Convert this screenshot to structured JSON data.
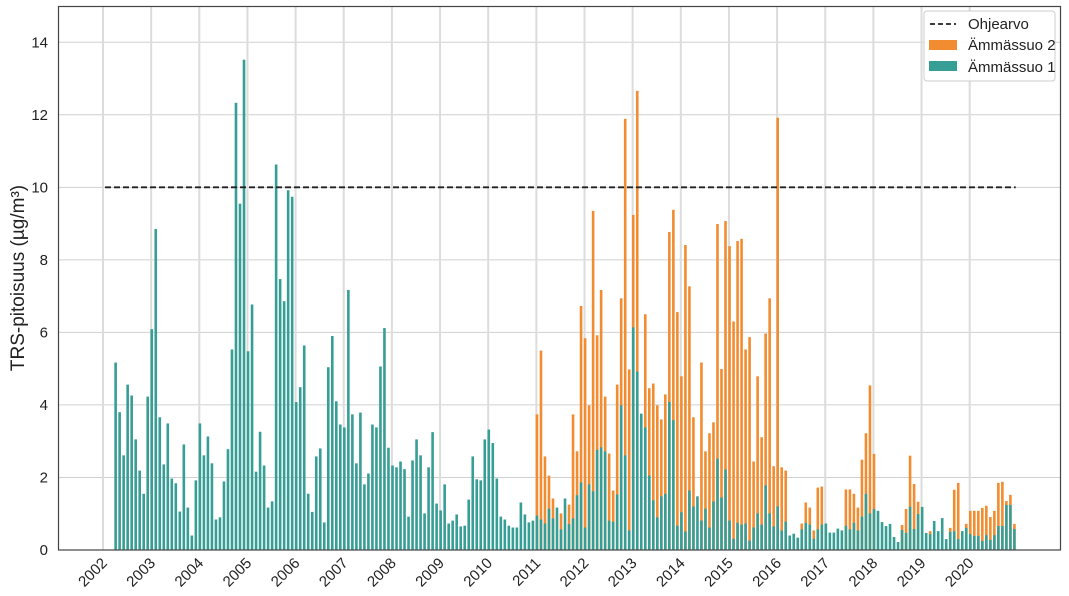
{
  "chart_data": {
    "type": "bar",
    "title": "",
    "xlabel": "",
    "ylabel": "TRS-pitoisuus (µg/m³)",
    "ylim": [
      0,
      15
    ],
    "yticks": [
      0,
      2,
      4,
      6,
      8,
      10,
      12,
      14
    ],
    "xticks": [
      "2002",
      "2003",
      "2004",
      "2005",
      "2006",
      "2007",
      "2008",
      "2009",
      "2010",
      "2011",
      "2012",
      "2013",
      "2014",
      "2015",
      "2016",
      "2017",
      "2018",
      "2019",
      "2020"
    ],
    "grid": true,
    "legend_position": "top-right",
    "reference_line": {
      "name": "Ohjearvo",
      "value": 10,
      "style": "dashed",
      "color": "#222222"
    },
    "series": [
      {
        "name": "Ämmässuo 2",
        "color": "#f28c30",
        "monthly": {
          "2011": [
            3.74,
            5.5,
            2.58,
            2.05,
            1.42,
            null,
            1.01,
            null,
            1.25,
            3.74,
            2.72,
            6.73
          ],
          "2012": [
            5.84,
            3.99,
            9.35,
            5.92,
            7.17,
            4.23,
            2.66,
            1.64,
            4.56,
            6.94,
            11.89,
            4.98
          ],
          "2013": [
            9.24,
            12.66,
            null,
            6.5,
            4.46,
            4.59,
            3.99,
            3.6,
            4.29,
            8.77,
            9.38,
            6.56
          ],
          "2014": [
            4.79,
            8.41,
            7.27,
            3.66,
            null,
            5.17,
            2.72,
            3.22,
            3.52,
            8.99,
            4.99,
            9.07
          ],
          "2015": [
            8.38,
            6.3,
            8.52,
            8.58,
            5.53,
            5.87,
            2.44,
            4.79,
            3.11,
            5.97,
            6.94,
            2.31
          ],
          "2016": [
            11.92,
            2.28,
            2.19,
            null,
            null,
            null,
            0.73,
            1.31,
            1.17,
            0.54,
            1.72,
            1.75
          ],
          "2017": [
            null,
            null,
            null,
            null,
            null,
            1.67,
            1.67,
            1.55,
            1.17,
            2.49,
            3.22,
            4.54
          ],
          "2018": [
            2.65,
            null,
            null,
            null,
            null,
            null,
            null,
            0.69,
            1.13,
            2.6,
            1.82,
            1.33
          ],
          "2019": [
            null,
            null,
            0.52,
            null,
            null,
            null,
            null,
            0.61,
            1.66,
            1.85,
            null,
            0.72
          ],
          "2020": [
            1.08,
            1.08,
            1.08,
            1.16,
            1.22,
            0.91,
            1.08,
            1.85,
            1.88,
            1.35,
            1.52,
            0.72
          ]
        }
      },
      {
        "name": "Ämmässuo 1",
        "color": "#379e96",
        "monthly": {
          "2002": [
            null,
            null,
            null,
            5.17,
            3.8,
            2.61,
            4.56,
            4.26,
            3.05,
            2.19,
            1.55,
            4.23
          ],
          "2003": [
            6.09,
            8.85,
            3.66,
            2.36,
            3.49,
            1.97,
            1.84,
            1.06,
            2.91,
            1.17,
            0.4,
            1.92
          ],
          "2004": [
            3.49,
            2.61,
            3.13,
            2.39,
            0.84,
            0.9,
            1.89,
            2.78,
            5.53,
            12.33,
            9.55,
            13.52
          ],
          "2005": [
            5.48,
            6.77,
            2.16,
            3.26,
            2.33,
            1.17,
            1.34,
            10.63,
            7.47,
            6.86,
            9.92,
            9.74
          ],
          "2006": [
            4.08,
            4.49,
            5.64,
            1.55,
            1.05,
            2.58,
            2.8,
            0.76,
            5.04,
            5.9,
            4.1,
            3.46
          ],
          "2007": [
            3.38,
            7.17,
            3.74,
            2.39,
            3.79,
            1.81,
            2.11,
            3.46,
            3.38,
            5.06,
            6.12,
            2.82
          ],
          "2008": [
            2.33,
            2.28,
            2.44,
            2.23,
            0.92,
            2.47,
            3.05,
            2.61,
            1.01,
            2.28,
            3.25,
            1.28
          ],
          "2009": [
            1.09,
            1.81,
            0.73,
            0.81,
            0.98,
            0.65,
            0.67,
            1.39,
            2.58,
            1.95,
            1.92,
            3.05
          ],
          "2010": [
            3.32,
            2.95,
            1.97,
            0.92,
            0.84,
            0.67,
            0.62,
            0.62,
            1.31,
            0.98,
            0.76,
            0.81
          ],
          "2011": [
            0.95,
            0.84,
            0.73,
            1.14,
            0.87,
            1.17,
            0.57,
            1.42,
            0.71,
            0.87,
            1.51,
            1.86
          ],
          "2012": [
            0.62,
            1.81,
            1.62,
            2.76,
            2.83,
            2.72,
            0.81,
            0.78,
            1.53,
            3.99,
            2.61,
            0.54
          ],
          "2013": [
            6.14,
            4.92,
            3.76,
            3.38,
            2.05,
            1.37,
            0.9,
            1.48,
            1.55,
            4.08,
            3.58,
            0.67
          ],
          "2014": [
            1.04,
            0.51,
            1.64,
            1.2,
            1.48,
            0.81,
            1.14,
            0.62,
            1.34,
            2.52,
            1.45,
            2.22
          ],
          "2015": [
            0.81,
            0.31,
            0.75,
            0.7,
            0.73,
            0.26,
            0.62,
            1.01,
            0.7,
            1.78,
            1.01,
            0.65
          ],
          "2016": [
            1.2,
            0.54,
            0.78,
            0.4,
            0.45,
            0.34,
            0.57,
            0.75,
            0.7,
            0.31,
            0.57,
            0.7
          ],
          "2017": [
            0.73,
            0.48,
            0.48,
            0.59,
            0.54,
            0.67,
            0.57,
            0.75,
            0.54,
            0.92,
            1.55,
            1.01
          ],
          "2018": [
            1.13,
            1.08,
            0.77,
            0.66,
            0.72,
            0.36,
            0.22,
            0.55,
            0.47,
            1.19,
            0.58,
            0.99
          ],
          "2019": [
            1.19,
            0.47,
            0.44,
            0.8,
            0.52,
            0.88,
            0.3,
            0.5,
            0.52,
            0.3,
            0.52,
            0.61
          ],
          "2020": [
            0.44,
            0.39,
            0.39,
            0.25,
            0.41,
            0.28,
            0.41,
            0.66,
            0.66,
            1.24,
            1.24,
            0.58
          ]
        }
      }
    ]
  }
}
